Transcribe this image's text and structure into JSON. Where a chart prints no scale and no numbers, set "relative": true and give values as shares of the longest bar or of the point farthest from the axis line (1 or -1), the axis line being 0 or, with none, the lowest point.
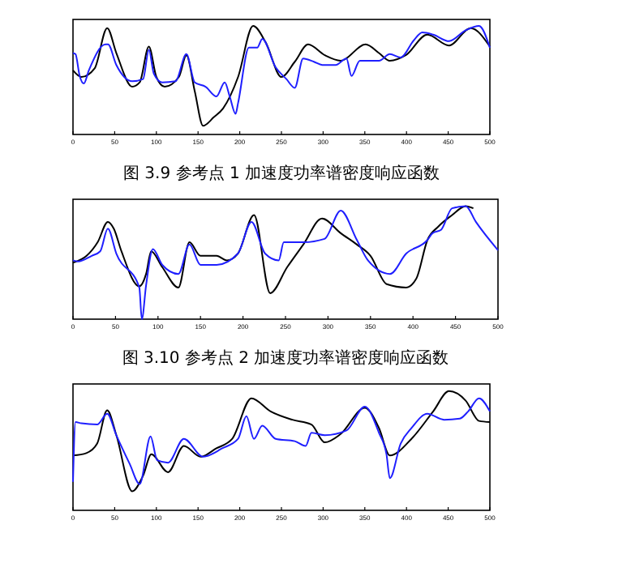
{
  "chart_data": [
    {
      "type": "line",
      "title": "图 3.9  参考点 1 加速度功率谱密度响应函数",
      "relative": true,
      "xlim": [
        0,
        500
      ],
      "xticks": [
        0,
        50,
        100,
        150,
        200,
        250,
        300,
        350,
        400,
        450,
        500
      ],
      "grid": false,
      "series": [
        {
          "color": "#000000",
          "x": [
            0,
            10,
            26,
            41,
            52,
            71,
            80,
            91,
            100,
            110,
            127,
            136,
            146,
            156,
            169,
            180,
            198,
            216,
            231,
            250,
            266,
            282,
            302,
            321,
            351,
            367,
            380,
            399,
            425,
            451,
            477,
            500
          ],
          "values": [
            0.59,
            0.53,
            0.61,
            0.98,
            0.75,
            0.44,
            0.48,
            0.81,
            0.53,
            0.44,
            0.53,
            0.73,
            0.4,
            0.08,
            0.16,
            0.24,
            0.53,
            1.0,
            0.85,
            0.53,
            0.67,
            0.83,
            0.73,
            0.68,
            0.83,
            0.75,
            0.68,
            0.73,
            0.92,
            0.82,
            0.98,
            0.81
          ]
        },
        {
          "color": "#1f1fff",
          "x": [
            0,
            3,
            8,
            13,
            19,
            39,
            42,
            52,
            71,
            84,
            91,
            97,
            107,
            123,
            136,
            146,
            159,
            172,
            182,
            188,
            195,
            198,
            211,
            221,
            227,
            243,
            256,
            266,
            276,
            289,
            299,
            315,
            328,
            334,
            344,
            367,
            380,
            393,
            409,
            419,
            432,
            451,
            471,
            487,
            500
          ],
          "values": [
            0.75,
            0.74,
            0.54,
            0.47,
            0.59,
            0.83,
            0.83,
            0.64,
            0.49,
            0.51,
            0.78,
            0.56,
            0.48,
            0.49,
            0.74,
            0.48,
            0.44,
            0.35,
            0.48,
            0.35,
            0.19,
            0.29,
            0.8,
            0.8,
            0.88,
            0.62,
            0.51,
            0.43,
            0.7,
            0.67,
            0.64,
            0.64,
            0.7,
            0.54,
            0.68,
            0.68,
            0.74,
            0.71,
            0.87,
            0.94,
            0.92,
            0.86,
            0.96,
            1.0,
            0.8
          ]
        }
      ]
    },
    {
      "type": "line",
      "title": "图 3.10  参考点 2 加速度功率谱密度响应函数",
      "relative": true,
      "xlim": [
        0,
        500
      ],
      "xticks": [
        0,
        50,
        100,
        150,
        200,
        250,
        300,
        350,
        400,
        450,
        500
      ],
      "grid": false,
      "series": [
        {
          "color": "#000000",
          "x": [
            0,
            16,
            29,
            41,
            48,
            57,
            78,
            86,
            92,
            105,
            124,
            137,
            150,
            169,
            181,
            194,
            213,
            232,
            252,
            271,
            293,
            315,
            334,
            350,
            369,
            392,
            404,
            417,
            430,
            446,
            462,
            471
          ],
          "values": [
            0.5,
            0.56,
            0.68,
            0.86,
            0.8,
            0.6,
            0.29,
            0.4,
            0.6,
            0.46,
            0.28,
            0.68,
            0.56,
            0.56,
            0.52,
            0.58,
            0.92,
            0.23,
            0.46,
            0.66,
            0.89,
            0.76,
            0.66,
            0.56,
            0.31,
            0.28,
            0.36,
            0.7,
            0.82,
            0.92,
            1.0,
            0.98
          ]
        },
        {
          "color": "#1f1fff",
          "x": [
            0,
            6,
            22,
            32,
            41,
            51,
            78,
            81,
            86,
            94,
            105,
            124,
            137,
            150,
            169,
            194,
            210,
            226,
            242,
            248,
            271,
            296,
            315,
            334,
            347,
            373,
            392,
            417,
            423,
            433,
            446,
            462,
            474,
            500
          ],
          "values": [
            0.52,
            0.51,
            0.56,
            0.6,
            0.8,
            0.58,
            0.28,
            0,
            0.3,
            0.62,
            0.48,
            0.4,
            0.66,
            0.48,
            0.48,
            0.58,
            0.86,
            0.58,
            0.52,
            0.68,
            0.68,
            0.71,
            0.96,
            0.7,
            0.52,
            0.4,
            0.58,
            0.7,
            0.76,
            0.79,
            0.98,
            1.0,
            0.86,
            0.61
          ]
        }
      ]
    },
    {
      "type": "line",
      "relative": true,
      "xlim": [
        0,
        500
      ],
      "xticks": [
        0,
        50,
        100,
        150,
        200,
        250,
        300,
        350,
        400,
        450,
        500
      ],
      "grid": false,
      "series": [
        {
          "color": "#000000",
          "x": [
            0,
            16,
            29,
            41,
            52,
            71,
            84,
            94,
            114,
            133,
            153,
            172,
            191,
            214,
            237,
            263,
            286,
            302,
            321,
            350,
            367,
            380,
            406,
            432,
            451,
            471,
            487,
            500
          ],
          "values": [
            0.46,
            0.48,
            0.56,
            0.84,
            0.63,
            0.16,
            0.29,
            0.47,
            0.32,
            0.54,
            0.45,
            0.52,
            0.6,
            0.94,
            0.83,
            0.76,
            0.72,
            0.57,
            0.64,
            0.86,
            0.69,
            0.46,
            0.6,
            0.83,
            1.0,
            0.92,
            0.75,
            0.74
          ]
        },
        {
          "color": "#1f1fff",
          "x": [
            0,
            3,
            10,
            29,
            41,
            52,
            68,
            80,
            93,
            101,
            114,
            133,
            156,
            179,
            198,
            208,
            217,
            227,
            243,
            266,
            279,
            286,
            302,
            328,
            350,
            367,
            376,
            380,
            393,
            406,
            425,
            445,
            464,
            474,
            487,
            500
          ],
          "values": [
            0.24,
            0.74,
            0.73,
            0.72,
            0.81,
            0.63,
            0.39,
            0.22,
            0.62,
            0.42,
            0.4,
            0.6,
            0.45,
            0.52,
            0.6,
            0.79,
            0.6,
            0.71,
            0.6,
            0.58,
            0.54,
            0.65,
            0.63,
            0.67,
            0.87,
            0.65,
            0.47,
            0.27,
            0.56,
            0.69,
            0.81,
            0.76,
            0.77,
            0.83,
            0.94,
            0.83
          ]
        }
      ]
    }
  ]
}
